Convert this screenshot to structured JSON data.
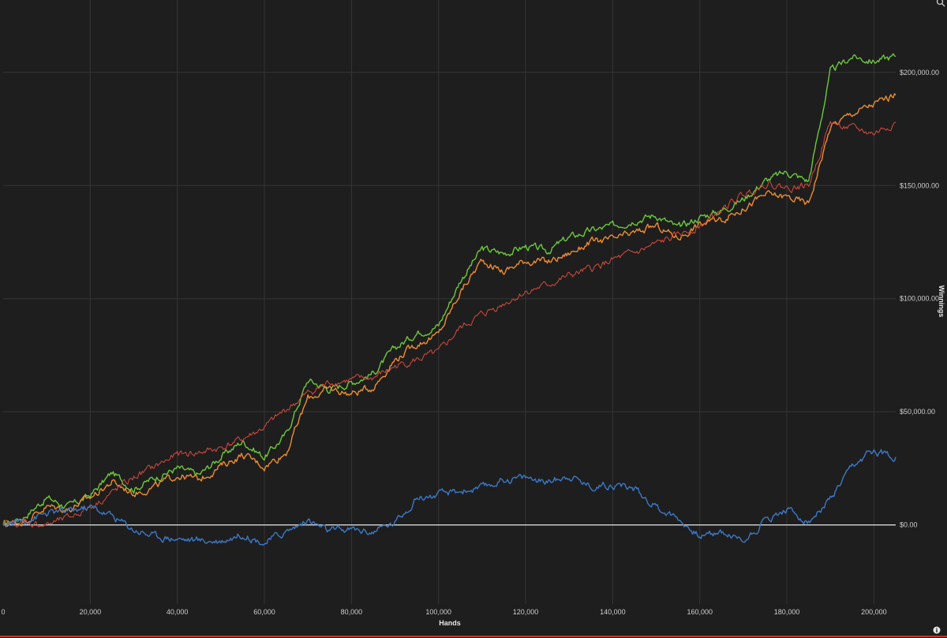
{
  "chart_data": {
    "type": "line",
    "xlabel": "Hands",
    "ylabel": "Winnings",
    "xlim": [
      0,
      205000
    ],
    "ylim": [
      -35000,
      232000
    ],
    "x_ticks": [
      0,
      20000,
      40000,
      60000,
      80000,
      100000,
      120000,
      140000,
      160000,
      180000,
      200000
    ],
    "x_tick_labels": [
      "0",
      "20,000",
      "40,000",
      "60,000",
      "80,000",
      "100,000",
      "120,000",
      "140,000",
      "160,000",
      "180,000",
      "200,000"
    ],
    "y_ticks": [
      0,
      50000,
      100000,
      150000,
      200000
    ],
    "y_tick_labels": [
      "$0.00",
      "$50,000.00",
      "$100,000.00",
      "$150,000.00",
      "$200,000.00"
    ],
    "grid": true,
    "zero_line": true,
    "x": [
      0,
      5000,
      10000,
      15000,
      20000,
      25000,
      30000,
      35000,
      40000,
      45000,
      50000,
      55000,
      60000,
      65000,
      70000,
      75000,
      80000,
      85000,
      90000,
      95000,
      100000,
      105000,
      110000,
      115000,
      120000,
      125000,
      130000,
      135000,
      140000,
      145000,
      150000,
      155000,
      160000,
      165000,
      170000,
      175000,
      180000,
      185000,
      190000,
      195000,
      200000,
      205000
    ],
    "series": [
      {
        "color": "#6cc83b",
        "values": [
          0,
          4000,
          12000,
          8000,
          13000,
          23000,
          16000,
          21000,
          25000,
          22000,
          30000,
          37000,
          30000,
          40000,
          64000,
          60000,
          63000,
          67000,
          78000,
          85000,
          88000,
          108000,
          122000,
          120000,
          123000,
          121000,
          127000,
          130000,
          132000,
          135000,
          137000,
          131000,
          136000,
          139000,
          144000,
          152000,
          156000,
          152000,
          200000,
          207000,
          205000,
          207000
        ]
      },
      {
        "color": "#f08c2e",
        "values": [
          0,
          2000,
          8000,
          7000,
          12000,
          19000,
          14000,
          17000,
          22000,
          20000,
          26000,
          31000,
          26000,
          32000,
          56000,
          60000,
          58000,
          61000,
          73000,
          80000,
          84000,
          103000,
          117000,
          112000,
          117000,
          116000,
          120000,
          125000,
          126000,
          129000,
          132000,
          127000,
          133000,
          135000,
          140000,
          146000,
          145000,
          142000,
          176000,
          182000,
          186000,
          190000
        ]
      },
      {
        "color": "#d94a3d",
        "values": [
          0,
          1000,
          0,
          3000,
          8000,
          14000,
          21000,
          26000,
          31000,
          32000,
          34000,
          38000,
          43000,
          51000,
          58000,
          63000,
          64000,
          65000,
          70000,
          73000,
          76000,
          87000,
          93000,
          98000,
          103000,
          106000,
          110000,
          113000,
          117000,
          120000,
          124000,
          128000,
          132000,
          139000,
          146000,
          151000,
          149000,
          150000,
          178000,
          175000,
          173000,
          178000
        ]
      },
      {
        "color": "#3c78c8",
        "values": [
          0,
          2000,
          5000,
          6000,
          8000,
          4000,
          -2000,
          -5000,
          -6000,
          -7000,
          -7000,
          -4000,
          -8000,
          -3000,
          2000,
          -3000,
          -2000,
          -3000,
          1000,
          12000,
          13000,
          15000,
          16000,
          20000,
          21000,
          19000,
          22000,
          17000,
          18000,
          16000,
          8000,
          3000,
          -5000,
          -3000,
          -7000,
          2000,
          7000,
          1000,
          11000,
          25000,
          33000,
          30000
        ]
      }
    ]
  },
  "ui": {
    "top_icon": "search-icon",
    "corner_icon": "info-icon"
  }
}
